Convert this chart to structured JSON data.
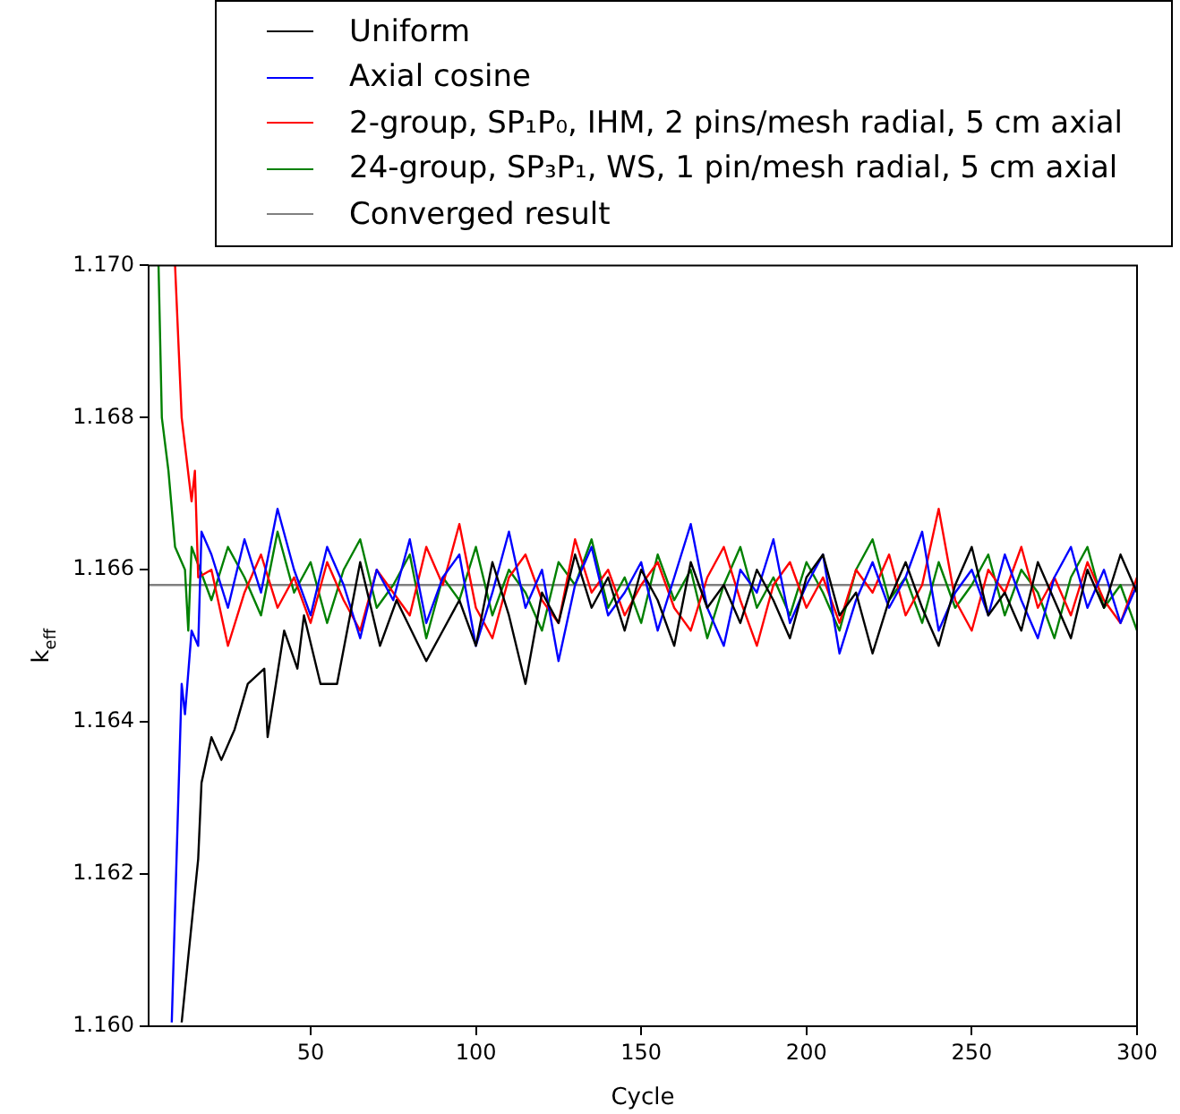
{
  "chart_data": {
    "type": "line",
    "xlabel": "Cycle",
    "ylabel": "k$_{eff}$",
    "legend": "top",
    "grid": false,
    "xlim": [
      1,
      300
    ],
    "xticks": [
      50,
      100,
      150,
      200,
      250,
      300
    ],
    "ylim": [
      1.16,
      1.17
    ],
    "yticks": [
      {
        "value": 1.16,
        "label": "1.160"
      },
      {
        "value": 1.162,
        "label": "1.162"
      },
      {
        "value": 1.164,
        "label": "1.164"
      },
      {
        "value": 1.166,
        "label": "1.166"
      },
      {
        "value": 1.168,
        "label": "1.168"
      },
      {
        "value": 1.17,
        "label": "1.170"
      }
    ],
    "series": [
      {
        "name": "Uniform",
        "color": "#000000",
        "x": [
          11,
          16,
          17,
          20,
          23,
          27,
          31,
          36,
          37,
          42,
          46,
          48,
          53,
          58,
          65,
          71,
          76,
          85,
          90,
          95,
          100,
          105,
          110,
          115,
          120,
          125,
          130,
          135,
          140,
          145,
          150,
          155,
          160,
          165,
          170,
          175,
          180,
          185,
          190,
          195,
          200,
          205,
          210,
          215,
          220,
          225,
          230,
          235,
          240,
          245,
          250,
          255,
          260,
          265,
          270,
          275,
          280,
          285,
          290,
          295,
          300
        ],
        "values": [
          1.16005,
          1.1622,
          1.1632,
          1.1638,
          1.1635,
          1.1639,
          1.1645,
          1.1647,
          1.1638,
          1.1652,
          1.1647,
          1.1654,
          1.1645,
          1.1645,
          1.1661,
          1.165,
          1.1656,
          1.1648,
          1.1652,
          1.1656,
          1.165,
          1.1661,
          1.1654,
          1.1645,
          1.1657,
          1.1653,
          1.1662,
          1.1655,
          1.1659,
          1.1652,
          1.166,
          1.1656,
          1.165,
          1.1661,
          1.1655,
          1.1658,
          1.1653,
          1.166,
          1.1656,
          1.1651,
          1.1659,
          1.1662,
          1.1654,
          1.1657,
          1.1649,
          1.1656,
          1.1661,
          1.1655,
          1.165,
          1.1658,
          1.1663,
          1.1654,
          1.1657,
          1.1652,
          1.1661,
          1.1656,
          1.1651,
          1.166,
          1.1655,
          1.1662,
          1.1657
        ]
      },
      {
        "name": "Axial cosine",
        "color": "#0000ff",
        "x": [
          8,
          11,
          12,
          14,
          16,
          17,
          20,
          25,
          30,
          35,
          40,
          45,
          50,
          55,
          60,
          65,
          70,
          75,
          80,
          85,
          90,
          95,
          100,
          105,
          110,
          115,
          120,
          125,
          130,
          135,
          140,
          145,
          150,
          155,
          160,
          165,
          170,
          175,
          180,
          185,
          190,
          195,
          200,
          205,
          210,
          215,
          220,
          225,
          230,
          235,
          240,
          245,
          250,
          255,
          260,
          265,
          270,
          275,
          280,
          285,
          290,
          295,
          300
        ],
        "values": [
          1.16005,
          1.1645,
          1.1641,
          1.1652,
          1.165,
          1.1665,
          1.1662,
          1.1655,
          1.1664,
          1.1657,
          1.1668,
          1.166,
          1.1654,
          1.1663,
          1.1658,
          1.1651,
          1.166,
          1.1656,
          1.1664,
          1.1653,
          1.1659,
          1.1662,
          1.165,
          1.1657,
          1.1665,
          1.1655,
          1.166,
          1.1648,
          1.1658,
          1.1663,
          1.1654,
          1.1657,
          1.1661,
          1.1652,
          1.1659,
          1.1666,
          1.1655,
          1.165,
          1.166,
          1.1657,
          1.1664,
          1.1653,
          1.1658,
          1.1662,
          1.1649,
          1.1656,
          1.1661,
          1.1655,
          1.1659,
          1.1665,
          1.1652,
          1.1657,
          1.166,
          1.1654,
          1.1662,
          1.1656,
          1.1651,
          1.1659,
          1.1663,
          1.1655,
          1.166,
          1.1653,
          1.1658
        ]
      },
      {
        "name": "2-group, SP₁P₀, IHM, 2 pins/mesh radial, 5 cm axial",
        "color": "#ff0000",
        "x": [
          9,
          11,
          14,
          15,
          16,
          20,
          25,
          30,
          35,
          40,
          45,
          50,
          55,
          60,
          65,
          70,
          75,
          80,
          85,
          90,
          95,
          100,
          105,
          110,
          115,
          120,
          125,
          130,
          135,
          140,
          145,
          150,
          155,
          160,
          165,
          170,
          175,
          180,
          185,
          190,
          195,
          200,
          205,
          210,
          215,
          220,
          225,
          230,
          235,
          240,
          245,
          250,
          255,
          260,
          265,
          270,
          275,
          280,
          285,
          290,
          295,
          300
        ],
        "values": [
          1.17,
          1.168,
          1.1669,
          1.1673,
          1.1659,
          1.166,
          1.165,
          1.1657,
          1.1662,
          1.1655,
          1.1659,
          1.1653,
          1.1661,
          1.1656,
          1.1652,
          1.166,
          1.1657,
          1.1654,
          1.1663,
          1.1658,
          1.1666,
          1.1655,
          1.1651,
          1.1659,
          1.1662,
          1.1656,
          1.1653,
          1.1664,
          1.1657,
          1.166,
          1.1654,
          1.1658,
          1.1661,
          1.1655,
          1.1652,
          1.1659,
          1.1663,
          1.1656,
          1.165,
          1.1658,
          1.1661,
          1.1655,
          1.1659,
          1.1653,
          1.166,
          1.1657,
          1.1662,
          1.1654,
          1.1658,
          1.1668,
          1.1656,
          1.1652,
          1.166,
          1.1657,
          1.1663,
          1.1655,
          1.1659,
          1.1654,
          1.1661,
          1.1656,
          1.1653,
          1.1659
        ]
      },
      {
        "name": "24-group, SP₃P₁, WS, 1 pin/mesh radial, 5 cm axial",
        "color": "#008000",
        "x": [
          4,
          5,
          7,
          9,
          12,
          13,
          14,
          20,
          25,
          30,
          35,
          40,
          45,
          50,
          55,
          60,
          65,
          70,
          75,
          80,
          85,
          90,
          95,
          100,
          105,
          110,
          115,
          120,
          125,
          130,
          135,
          140,
          145,
          150,
          155,
          160,
          165,
          170,
          175,
          180,
          185,
          190,
          195,
          200,
          205,
          210,
          215,
          220,
          225,
          230,
          235,
          240,
          245,
          250,
          255,
          260,
          265,
          270,
          275,
          280,
          285,
          290,
          295,
          300
        ],
        "values": [
          1.17,
          1.168,
          1.1673,
          1.1663,
          1.166,
          1.1652,
          1.1663,
          1.1656,
          1.1663,
          1.1659,
          1.1654,
          1.1665,
          1.1657,
          1.1661,
          1.1653,
          1.166,
          1.1664,
          1.1655,
          1.1658,
          1.1662,
          1.1651,
          1.1659,
          1.1656,
          1.1663,
          1.1654,
          1.166,
          1.1657,
          1.1652,
          1.1661,
          1.1658,
          1.1664,
          1.1655,
          1.1659,
          1.1653,
          1.1662,
          1.1656,
          1.166,
          1.1651,
          1.1658,
          1.1663,
          1.1655,
          1.1659,
          1.1654,
          1.1661,
          1.1657,
          1.1652,
          1.166,
          1.1664,
          1.1656,
          1.1659,
          1.1653,
          1.1661,
          1.1655,
          1.1658,
          1.1662,
          1.1654,
          1.166,
          1.1657,
          1.1651,
          1.1659,
          1.1663,
          1.1655,
          1.1658,
          1.1652
        ]
      },
      {
        "name": "Converged result",
        "color": "#808080",
        "x": [
          1,
          300
        ],
        "values": [
          1.1658,
          1.1658
        ]
      }
    ]
  }
}
